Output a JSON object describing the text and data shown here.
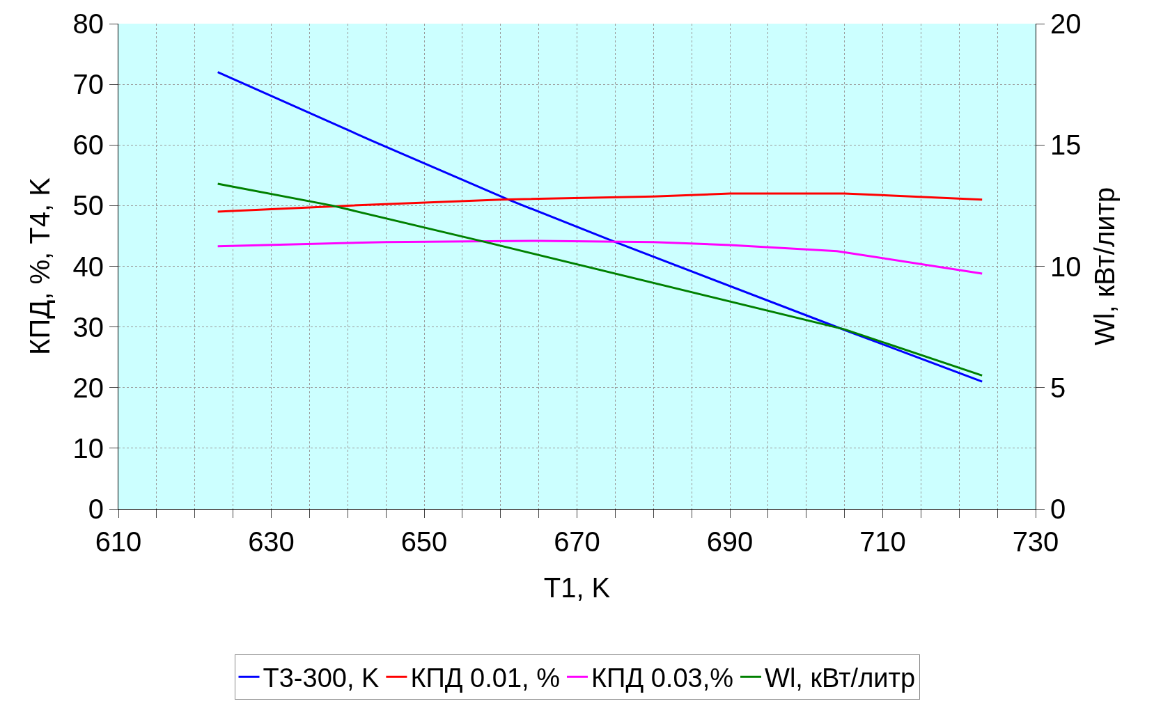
{
  "chart_data": {
    "type": "line",
    "xlabel": "T1, K",
    "ylabel": "КПД, %, T4, K",
    "y2label": "Wl, кВт/литр",
    "xlim": [
      610,
      730
    ],
    "xticks": [
      610,
      {
        "value": 615,
        "label": null
      },
      {
        "value": 620,
        "label": null
      },
      {
        "value": 625,
        "label": null
      },
      630,
      {
        "value": 635,
        "label": null
      },
      {
        "value": 640,
        "label": null
      },
      {
        "value": 645,
        "label": null
      },
      650,
      {
        "value": 655,
        "label": null
      },
      {
        "value": 660,
        "label": null
      },
      {
        "value": 665,
        "label": null
      },
      670,
      {
        "value": 675,
        "label": null
      },
      {
        "value": 680,
        "label": null
      },
      {
        "value": 685,
        "label": null
      },
      690,
      {
        "value": 695,
        "label": null
      },
      {
        "value": 700,
        "label": null
      },
      {
        "value": 705,
        "label": null
      },
      710,
      {
        "value": 715,
        "label": null
      },
      {
        "value": 720,
        "label": null
      },
      {
        "value": 725,
        "label": null
      },
      730
    ],
    "ylim": [
      0,
      80
    ],
    "yticks": [
      0,
      10,
      20,
      30,
      40,
      50,
      60,
      70,
      80
    ],
    "y2lim": [
      0,
      20
    ],
    "y2ticks": [
      0,
      5,
      10,
      15,
      20
    ],
    "grid": true,
    "legend": "bottom",
    "marker": "none",
    "line_style": "solid",
    "series": [
      {
        "name": "T3-300, K",
        "color": "#0000ff",
        "x": [
          623,
          643,
          661,
          675,
          705,
          723
        ],
        "values": [
          72,
          60.8,
          51,
          44,
          29.5,
          21
        ]
      },
      {
        "name": "КПД 0.01, %",
        "color": "#ff0000",
        "x": [
          623,
          640,
          660,
          680,
          690,
          705,
          723
        ],
        "values": [
          49,
          50,
          51,
          51.5,
          52,
          52,
          51
        ]
      },
      {
        "name": "КПД 0.03,%",
        "color": "#ff00ff",
        "x": [
          623,
          645,
          665,
          680,
          690,
          704,
          723
        ],
        "values": [
          43.3,
          44,
          44.2,
          44,
          43.5,
          42.5,
          38.8
        ]
      },
      {
        "name": "Wl, кВт/литр",
        "color": "#008000",
        "axis": "y2",
        "x": [
          623,
          638,
          658,
          705,
          723
        ],
        "values": [
          13.4,
          12.5,
          11,
          7.4,
          5.5
        ]
      }
    ]
  }
}
